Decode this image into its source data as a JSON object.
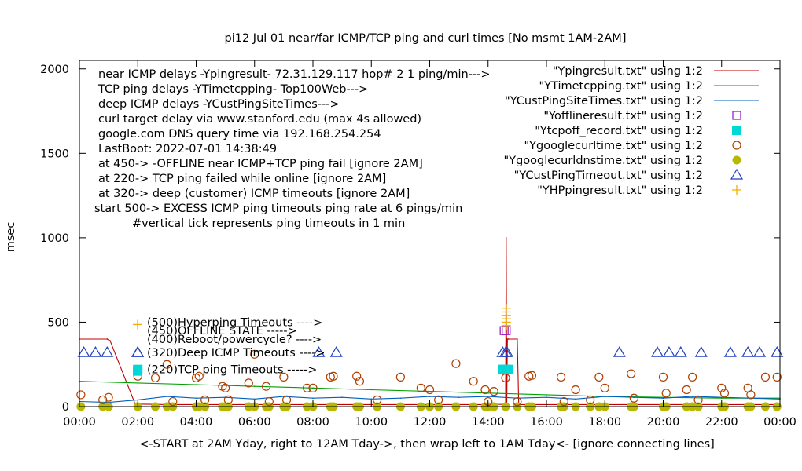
{
  "chart_data": {
    "type": "line",
    "title": "pi12 Jul 01  near/far ICMP/TCP ping and curl times [No msmt 1AM-2AM]",
    "xlabel": "<-START at 2AM Yday, right to 12AM Tday->, then wrap left to 1AM Tday<- [ignore connecting lines]",
    "ylabel": "msec",
    "xlim": [
      0,
      24
    ],
    "ylim": [
      0,
      2050
    ],
    "x_ticks": [
      "00:00",
      "02:00",
      "04:00",
      "06:00",
      "08:00",
      "10:00",
      "12:00",
      "14:00",
      "16:00",
      "18:00",
      "20:00",
      "22:00",
      "00:00"
    ],
    "y_ticks": [
      0,
      500,
      1000,
      1500,
      2000
    ],
    "grid": false,
    "legend_position": "top-right",
    "info_lines": [
      "near ICMP delays -Ypingresult- 72.31.129.117 hop# 2  1 ping/min--->",
      "TCP ping delays -YTimetcpping- Top100Web--->",
      "deep ICMP delays -YCustPingSiteTimes--->",
      "curl target delay via www.stanford.edu (max 4s allowed)",
      "google.com DNS query time via 192.168.254.254",
      "LastBoot: 2022-07-01 14:38:49",
      "at 450-> -OFFLINE near ICMP+TCP ping fail [ignore 2AM]",
      "at 220-> TCP ping failed while online [ignore 2AM]",
      "at 320-> deep (customer) ICMP timeouts [ignore 2AM]",
      "start 500-> EXCESS ICMP ping timeouts ping rate at 6 pings/min",
      "#vertical tick represents ping timeouts in 1 min"
    ],
    "level_labels": [
      {
        "text": "(500)Hyperping Timeouts ---->",
        "y": 500
      },
      {
        "text": "(450)OFFLINE STATE ----->",
        "y": 450
      },
      {
        "text": "(400)Reboot/powercycle? ---->",
        "y": 400
      },
      {
        "text": "(320)Deep ICMP Timeouts ---->",
        "y": 320
      },
      {
        "text": "(220)TCP ping Timeouts ----->",
        "y": 220
      }
    ],
    "series": [
      {
        "name": "\"Ypingresult.txt\" using 1:2",
        "style": "line",
        "color": "#c00000",
        "x": [
          0,
          0.95,
          1.05,
          1.9,
          2.0,
          3.0,
          6.0,
          10.0,
          14.0,
          14.6,
          14.62,
          14.64,
          14.66,
          14.7,
          15.0,
          15.05,
          18.0,
          22.0,
          24.0
        ],
        "y": [
          400,
          400,
          390,
          20,
          15,
          12,
          12,
          12,
          12,
          14,
          1000,
          14,
          400,
          400,
          400,
          12,
          12,
          12,
          12
        ]
      },
      {
        "name": "\"YTimetcpping.txt\" using 1:2",
        "style": "line",
        "color": "#00a000",
        "x": [
          0,
          2,
          4,
          6,
          8,
          10,
          12,
          14,
          16,
          18,
          20,
          22,
          24
        ],
        "y": [
          150,
          140,
          130,
          120,
          110,
          100,
          90,
          80,
          70,
          60,
          55,
          50,
          50
        ]
      },
      {
        "name": "\"YCustPingSiteTimes.txt\" using 1:2",
        "style": "line",
        "color": "#0060c0",
        "x": [
          0,
          1,
          2,
          3,
          4,
          5,
          6,
          7,
          8,
          9,
          10,
          11,
          12,
          13,
          14,
          15,
          16,
          17,
          18,
          19,
          20,
          21,
          22,
          23,
          24
        ],
        "y": [
          30,
          25,
          40,
          60,
          50,
          55,
          45,
          60,
          50,
          55,
          45,
          50,
          60,
          55,
          60,
          50,
          55,
          45,
          60,
          55,
          50,
          60,
          55,
          50,
          45
        ]
      },
      {
        "name": "\"Yofflineresult.txt\" using 1:2",
        "style": "square-open",
        "color": "#a020c0",
        "x": [
          14.55,
          14.62
        ],
        "y": [
          450,
          450
        ]
      },
      {
        "name": "\"Ytcpoff_record.txt\" using 1:2",
        "style": "square-filled",
        "color": "#00d8d8",
        "x": [
          2.0,
          14.5,
          14.55,
          14.62,
          14.7
        ],
        "y": [
          220,
          220,
          220,
          220,
          220
        ]
      },
      {
        "name": "\"Ygooglecurltime.txt\" using 1:2",
        "style": "circle-open",
        "color": "#b04000",
        "x": [
          0.05,
          0.8,
          1.0,
          2.0,
          2.6,
          3.0,
          3.2,
          4.0,
          4.1,
          4.3,
          4.9,
          5.0,
          5.1,
          5.8,
          6.0,
          6.4,
          6.5,
          7.0,
          7.1,
          7.8,
          8.0,
          8.6,
          8.7,
          9.5,
          9.6,
          10.2,
          11.0,
          11.7,
          12.0,
          12.3,
          12.9,
          13.5,
          13.9,
          14.0,
          14.2,
          14.6,
          15.0,
          15.4,
          15.5,
          16.5,
          16.6,
          17.0,
          17.5,
          17.8,
          18.0,
          18.9,
          19.0,
          20.0,
          20.1,
          20.8,
          21.0,
          21.2,
          22.0,
          22.1,
          22.9,
          23.0,
          23.5,
          23.9
        ],
        "y": [
          70,
          40,
          55,
          180,
          170,
          250,
          30,
          170,
          180,
          40,
          120,
          110,
          40,
          140,
          310,
          120,
          30,
          175,
          40,
          110,
          110,
          175,
          180,
          180,
          150,
          40,
          175,
          110,
          100,
          40,
          255,
          150,
          100,
          30,
          90,
          170,
          30,
          180,
          185,
          175,
          30,
          100,
          40,
          175,
          110,
          195,
          50,
          175,
          80,
          100,
          175,
          40,
          110,
          80,
          110,
          70,
          175,
          175
        ]
      },
      {
        "name": "\"Ygooglecurldnstime.txt\" using 1:2",
        "style": "circle-filled",
        "color": "#b8b800",
        "x": [
          0.05,
          0.8,
          1.0,
          2.0,
          2.6,
          3.0,
          3.2,
          4.0,
          4.1,
          4.3,
          4.9,
          5.0,
          5.1,
          5.8,
          6.0,
          6.4,
          6.5,
          7.0,
          7.1,
          7.8,
          8.0,
          8.6,
          8.7,
          9.5,
          9.6,
          10.2,
          11.0,
          11.7,
          12.0,
          12.3,
          12.9,
          13.5,
          13.9,
          14.0,
          14.2,
          14.6,
          15.0,
          15.4,
          15.5,
          16.5,
          16.6,
          17.0,
          17.5,
          17.8,
          18.0,
          18.9,
          19.0,
          20.0,
          20.1,
          20.8,
          21.0,
          21.2,
          22.0,
          22.1,
          22.9,
          23.0,
          23.5,
          23.9
        ],
        "y": [
          0,
          0,
          0,
          0,
          0,
          0,
          0,
          0,
          0,
          0,
          0,
          0,
          0,
          0,
          0,
          0,
          0,
          0,
          0,
          0,
          0,
          0,
          0,
          0,
          0,
          0,
          0,
          0,
          0,
          0,
          0,
          0,
          0,
          0,
          0,
          0,
          0,
          0,
          0,
          0,
          0,
          0,
          0,
          0,
          0,
          0,
          0,
          0,
          0,
          0,
          0,
          0,
          0,
          0,
          0,
          0,
          0,
          0
        ]
      },
      {
        "name": "\"YCustPingTimeout.txt\" using 1:2",
        "style": "triangle-open",
        "color": "#2040c0",
        "x": [
          0.15,
          0.55,
          0.95,
          2.0,
          8.2,
          8.8,
          14.5,
          14.6,
          14.65,
          18.5,
          19.8,
          20.2,
          20.6,
          21.3,
          22.3,
          22.9,
          23.3,
          23.9
        ],
        "y": [
          320,
          320,
          320,
          320,
          320,
          320,
          320,
          320,
          320,
          320,
          320,
          320,
          320,
          320,
          320,
          320,
          320,
          320
        ]
      },
      {
        "name": "\"YHPpingresult.txt\" using 1:2",
        "style": "plus",
        "color": "#f0b000",
        "x": [
          14.62,
          14.62,
          14.62,
          14.62,
          14.62,
          14.62
        ],
        "y": [
          500,
          520,
          540,
          560,
          580,
          480
        ]
      }
    ]
  }
}
